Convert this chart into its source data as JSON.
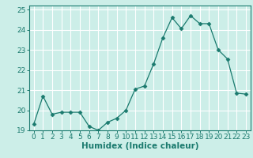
{
  "xlabel": "Humidex (Indice chaleur)",
  "x": [
    0,
    1,
    2,
    3,
    4,
    5,
    6,
    7,
    8,
    9,
    10,
    11,
    12,
    13,
    14,
    15,
    16,
    17,
    18,
    19,
    20,
    21,
    22,
    23
  ],
  "y": [
    19.3,
    20.7,
    19.8,
    19.9,
    19.9,
    19.9,
    19.2,
    19.0,
    19.4,
    19.6,
    20.0,
    21.05,
    21.2,
    22.3,
    23.6,
    24.6,
    24.05,
    24.7,
    24.3,
    24.3,
    23.0,
    22.55,
    20.85,
    20.8
  ],
  "line_color": "#1a7a6e",
  "marker": "D",
  "marker_size": 2.5,
  "background_color": "#cceee8",
  "grid_color": "#ffffff",
  "tick_color": "#1a7a6e",
  "label_color": "#1a7a6e",
  "ylim": [
    19.0,
    25.2
  ],
  "yticks": [
    19,
    20,
    21,
    22,
    23,
    24,
    25
  ],
  "xlim": [
    -0.5,
    23.5
  ],
  "xticks": [
    0,
    1,
    2,
    3,
    4,
    5,
    6,
    7,
    8,
    9,
    10,
    11,
    12,
    13,
    14,
    15,
    16,
    17,
    18,
    19,
    20,
    21,
    22,
    23
  ],
  "tick_fontsize": 6.5,
  "xlabel_fontsize": 7.5
}
